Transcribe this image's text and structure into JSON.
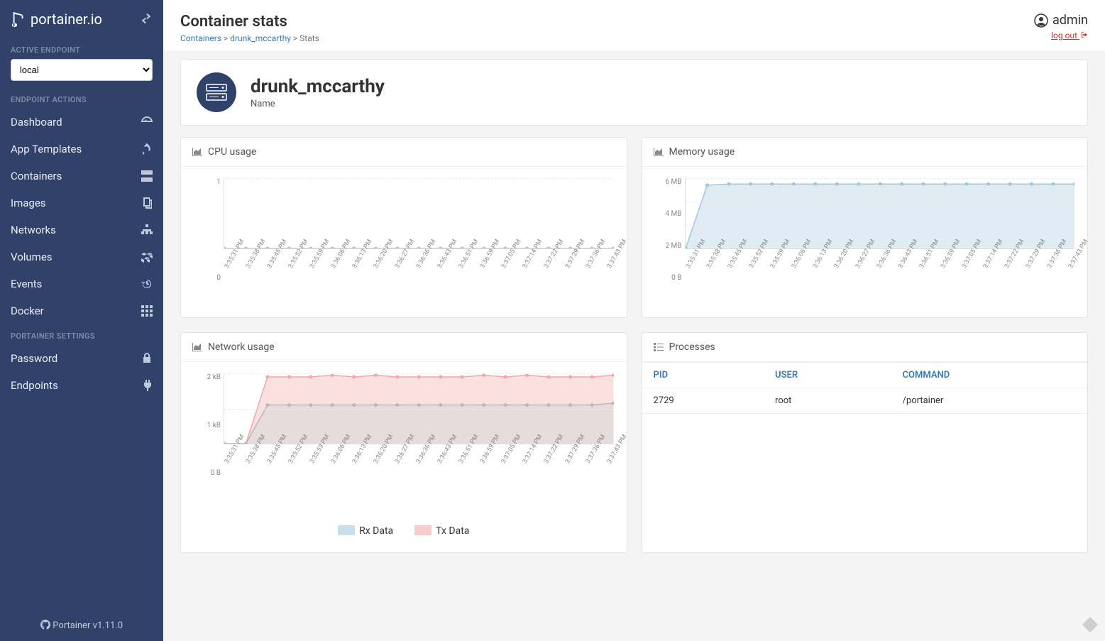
{
  "brand": "portainer.io",
  "sidebar": {
    "active_endpoint_label": "ACTIVE ENDPOINT",
    "endpoint_value": "local",
    "endpoint_actions_label": "ENDPOINT ACTIONS",
    "nav": [
      {
        "label": "Dashboard",
        "icon": "dashboard"
      },
      {
        "label": "App Templates",
        "icon": "rocket"
      },
      {
        "label": "Containers",
        "icon": "server"
      },
      {
        "label": "Images",
        "icon": "copy"
      },
      {
        "label": "Networks",
        "icon": "sitemap"
      },
      {
        "label": "Volumes",
        "icon": "cubes"
      },
      {
        "label": "Events",
        "icon": "history"
      },
      {
        "label": "Docker",
        "icon": "th"
      }
    ],
    "settings_label": "PORTAINER SETTINGS",
    "settings": [
      {
        "label": "Password",
        "icon": "lock"
      },
      {
        "label": "Endpoints",
        "icon": "plug"
      }
    ],
    "footer": "Portainer v1.11.0"
  },
  "header": {
    "title": "Container stats",
    "breadcrumb": [
      {
        "label": "Containers",
        "link": true
      },
      {
        "label": "drunk_mccarthy",
        "link": true
      },
      {
        "label": "Stats",
        "link": false
      }
    ],
    "user": "admin",
    "logout": "log out"
  },
  "hero": {
    "title": "drunk_mccarthy",
    "subtitle": "Name"
  },
  "timestamps": [
    "3:35:31 PM",
    "3:35:38 PM",
    "3:35:45 PM",
    "3:35:52 PM",
    "3:35:59 PM",
    "3:36:06 PM",
    "3:36:13 PM",
    "3:36:20 PM",
    "3:36:27 PM",
    "3:36:36 PM",
    "3:36:43 PM",
    "3:36:51 PM",
    "3:36:59 PM",
    "3:37:05 PM",
    "3:37:14 PM",
    "3:37:22 PM",
    "3:37:29 PM",
    "3:37:36 PM",
    "3:37:43 PM"
  ],
  "cpu_chart": {
    "type": "line",
    "title": "CPU usage",
    "ylim": [
      0,
      1
    ],
    "yticks": [
      "1",
      "0"
    ],
    "series": [
      {
        "color": "#a3c7dd",
        "fill": "#c9dfeb",
        "values": [
          0,
          0,
          0,
          0,
          0,
          0,
          0,
          0,
          0,
          0,
          0,
          0,
          0,
          0,
          0,
          0,
          0,
          0,
          0
        ]
      }
    ],
    "background_color": "#ffffff",
    "grid_color": "#eeeeee"
  },
  "mem_chart": {
    "type": "area",
    "title": "Memory usage",
    "ylim": [
      0,
      6
    ],
    "yticks": [
      "6 MB",
      "4 MB",
      "2 MB",
      "0 B"
    ],
    "series": [
      {
        "color": "#a3c7dd",
        "fill": "#c9dfeb",
        "values": [
          0,
          5.4,
          5.5,
          5.5,
          5.5,
          5.5,
          5.5,
          5.5,
          5.5,
          5.5,
          5.5,
          5.5,
          5.5,
          5.5,
          5.5,
          5.5,
          5.5,
          5.5,
          5.5
        ]
      }
    ],
    "background_color": "#ffffff",
    "grid_color": "#eeeeee"
  },
  "net_chart": {
    "type": "area",
    "title": "Network usage",
    "ylim": [
      0,
      2
    ],
    "yticks": [
      "2 kB",
      "1 kB",
      "0 B"
    ],
    "series": [
      {
        "label": "Rx Data",
        "color": "#b9b9b9",
        "fill": "#d8d8d8",
        "values": [
          0,
          0,
          1.1,
          1.1,
          1.1,
          1.1,
          1.1,
          1.1,
          1.1,
          1.1,
          1.1,
          1.1,
          1.1,
          1.1,
          1.1,
          1.1,
          1.1,
          1.1,
          1.15
        ]
      },
      {
        "label": "Tx Data",
        "color": "#f3a7a7",
        "fill": "#f8cccc",
        "values": [
          0,
          0,
          1.9,
          1.9,
          1.9,
          1.95,
          1.9,
          1.95,
          1.9,
          1.9,
          1.9,
          1.9,
          1.95,
          1.9,
          1.95,
          1.9,
          1.9,
          1.9,
          1.95
        ]
      }
    ],
    "legend": [
      "Rx Data",
      "Tx Data"
    ],
    "legend_colors": [
      "#c9dfeb",
      "#f8cccc"
    ]
  },
  "processes": {
    "title": "Processes",
    "columns": [
      "PID",
      "USER",
      "COMMAND"
    ],
    "rows": [
      [
        "2729",
        "root",
        "/portainer"
      ]
    ]
  }
}
